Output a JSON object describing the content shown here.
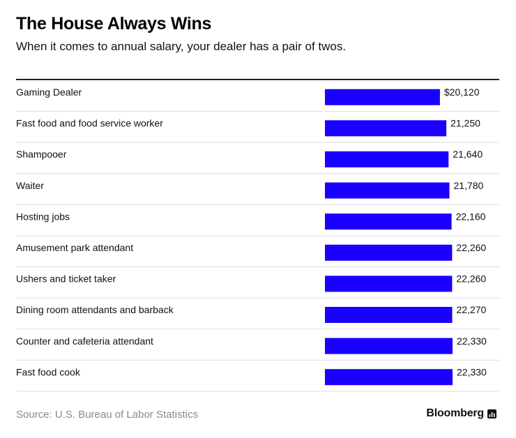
{
  "header": {
    "title": "The House Always Wins",
    "subtitle": "When it comes to annual salary, your dealer has a pair of twos."
  },
  "footer": {
    "source": "Source: U.S. Bureau of Labor Statistics",
    "brand": "Bloomberg",
    "brand_icon": "bloomberg-chart-icon"
  },
  "colors": {
    "bar": "#1a00ff",
    "rule": "#dddddd"
  },
  "chart_data": {
    "type": "bar",
    "orientation": "horizontal",
    "title": "The House Always Wins",
    "subtitle": "When it comes to annual salary, your dealer has a pair of twos.",
    "xlabel": "",
    "ylabel": "",
    "xlim": [
      0,
      22330
    ],
    "grid": false,
    "legend": "none",
    "categories": [
      "Gaming Dealer",
      "Fast food and food service worker",
      "Shampooer",
      "Waiter",
      "Hosting jobs",
      "Amusement park attendant",
      "Ushers and ticket taker",
      "Dining room attendants and barback",
      "Counter and cafeteria attendant",
      "Fast food cook"
    ],
    "values": [
      20120,
      21250,
      21640,
      21780,
      22160,
      22260,
      22260,
      22270,
      22330,
      22330
    ],
    "value_labels": [
      "$20,120",
      "21,250",
      "21,640",
      "21,780",
      "22,160",
      "22,260",
      "22,260",
      "22,270",
      "22,330",
      "22,330"
    ]
  }
}
